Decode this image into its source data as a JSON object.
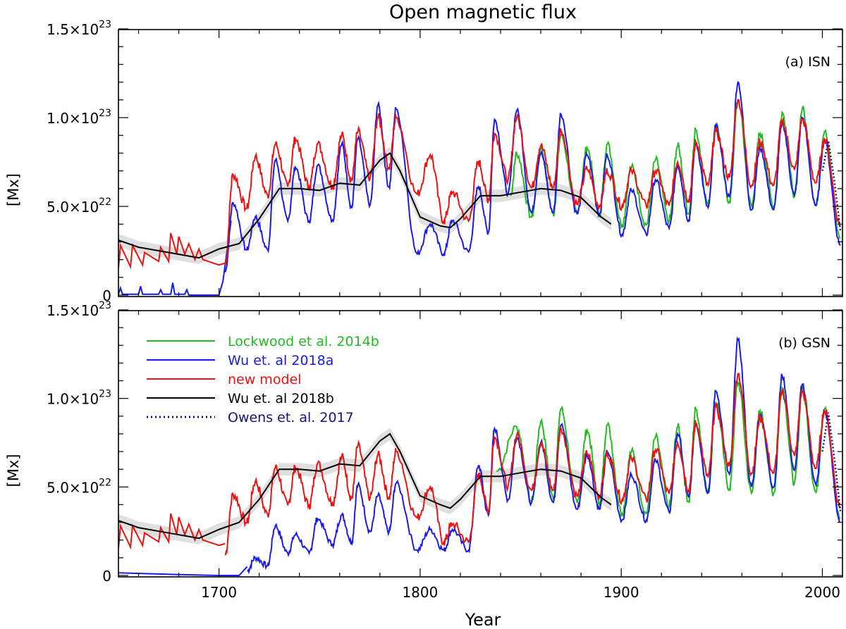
{
  "chart_data": {
    "type": "line",
    "title": "Open magnetic flux",
    "xlabel": "Year",
    "ylabel": "[Mx]",
    "xlim": [
      1650,
      2010
    ],
    "ylim": [
      0,
      1.5e+23
    ],
    "x_ticks": [
      {
        "value": 1700,
        "label": "1700"
      },
      {
        "value": 1800,
        "label": "1800"
      },
      {
        "value": 1900,
        "label": "1900"
      },
      {
        "value": 2000,
        "label": "2000"
      }
    ],
    "y_ticks": [
      {
        "value": 0,
        "mant": "0",
        "exp": ""
      },
      {
        "value": 5e+22,
        "mant": "5.0×10",
        "exp": "22"
      },
      {
        "value": 1e+23,
        "mant": "1.0×10",
        "exp": "23"
      },
      {
        "value": 1.5e+23,
        "mant": "1.5×10",
        "exp": "23"
      }
    ],
    "legend": [
      {
        "label": "Lockwood et al. 2014b",
        "color": "#22bb22",
        "style": "solid"
      },
      {
        "label": "Wu et. al 2018a",
        "color": "#1a1aee",
        "style": "solid"
      },
      {
        "label": "new model",
        "color": "#ee1111",
        "style": "solid"
      },
      {
        "label": "Wu et. al 2018b",
        "color": "#000000",
        "style": "solid"
      },
      {
        "label": "Owens et. al. 2017",
        "color": "#141480",
        "style": "dotted"
      }
    ],
    "panels": [
      {
        "id": "a",
        "label": "(a) ISN",
        "series": {
          "wu2018b": {
            "x": [
              1650,
              1660,
              1670,
              1680,
              1690,
              1700,
              1710,
              1720,
              1730,
              1740,
              1750,
              1760,
              1770,
              1780,
              1785,
              1790,
              1800,
              1810,
              1815,
              1820,
              1830,
              1840,
              1850,
              1860,
              1870,
              1880,
              1890,
              1895
            ],
            "y": [
              3.1e+22,
              2.7e+22,
              2.5e+22,
              2.3e+22,
              2.1e+22,
              2.6e+22,
              2.9e+22,
              4.3e+22,
              6e+22,
              6e+22,
              5.9e+22,
              6.3e+22,
              6.2e+22,
              7.6e+22,
              8e+22,
              7e+22,
              4.4e+22,
              3.9e+22,
              3.8e+22,
              4.3e+22,
              5.6e+22,
              5.6e+22,
              5.8e+22,
              6e+22,
              5.9e+22,
              5.5e+22,
              4.4e+22,
              4e+22
            ]
          },
          "wu2018a": {
            "peaks": [
              [
                1707,
                5.2e+22
              ],
              [
                1718,
                4.4e+22
              ],
              [
                1728,
                7.6e+22
              ],
              [
                1738,
                7.2e+22
              ],
              [
                1749,
                7.3e+22
              ],
              [
                1761,
                8.5e+22
              ],
              [
                1769,
                8.8e+22
              ],
              [
                1779,
                1.07e+23
              ],
              [
                1788,
                1.05e+23
              ],
              [
                1805,
                4e+22
              ],
              [
                1816,
                4.2e+22
              ],
              [
                1829,
                6.1e+22
              ],
              [
                1837,
                9.9e+22
              ],
              [
                1848,
                1.04e+23
              ],
              [
                1860,
                8e+22
              ],
              [
                1870,
                1.02e+23
              ],
              [
                1883,
                7.9e+22
              ],
              [
                1893,
                7.9e+22
              ],
              [
                1905,
                5.9e+22
              ],
              [
                1917,
                6.5e+22
              ],
              [
                1928,
                7.3e+22
              ],
              [
                1937,
                8.5e+22
              ],
              [
                1947,
                9.5e+22
              ],
              [
                1958,
                1.2e+23
              ],
              [
                1969,
                8.3e+22
              ],
              [
                1980,
                9.7e+22
              ],
              [
                1990,
                1e+23
              ],
              [
                2001,
                8.7e+22
              ]
            ],
            "trough_scale": 0.58,
            "final": 2.8e+22
          },
          "lockwood2014b": {
            "start": 1845,
            "peaks": [
              [
                1848,
                8e+22
              ],
              [
                1860,
                8.3e+22
              ],
              [
                1870,
                9e+22
              ],
              [
                1883,
                8.3e+22
              ],
              [
                1893,
                8.5e+22
              ],
              [
                1905,
                7.2e+22
              ],
              [
                1917,
                7.6e+22
              ],
              [
                1928,
                8.4e+22
              ],
              [
                1937,
                9.3e+22
              ],
              [
                1947,
                9.6e+22
              ],
              [
                1958,
                1.1e+23
              ],
              [
                1969,
                9.1e+22
              ],
              [
                1980,
                1.03e+23
              ],
              [
                1990,
                1.05e+23
              ],
              [
                2001,
                9.2e+22
              ]
            ],
            "trough_scale": 0.55,
            "final": 3.2e+22
          },
          "newmodel": {
            "peaks": [
              [
                1707,
                6.8e+22
              ],
              [
                1718,
                7.8e+22
              ],
              [
                1728,
                8.5e+22
              ],
              [
                1738,
                8.8e+22
              ],
              [
                1749,
                8.5e+22
              ],
              [
                1761,
                9e+22
              ],
              [
                1769,
                9.2e+22
              ],
              [
                1779,
                1e+23
              ],
              [
                1788,
                1e+23
              ],
              [
                1805,
                7.9e+22
              ],
              [
                1816,
                5.8e+22
              ],
              [
                1829,
                7.5e+22
              ],
              [
                1837,
                9.1e+22
              ],
              [
                1848,
                1e+23
              ],
              [
                1860,
                8.4e+22
              ],
              [
                1870,
                9.3e+22
              ],
              [
                1883,
                7.1e+22
              ],
              [
                1893,
                7e+22
              ],
              [
                1905,
                7e+22
              ],
              [
                1917,
                7e+22
              ],
              [
                1928,
                7.5e+22
              ],
              [
                1937,
                8.6e+22
              ],
              [
                1947,
                9.2e+22
              ],
              [
                1958,
                1.1e+23
              ],
              [
                1969,
                8.6e+22
              ],
              [
                1980,
                9.8e+22
              ],
              [
                1990,
                9.9e+22
              ],
              [
                2001,
                8.8e+22
              ]
            ],
            "trough_scale": 0.72,
            "final": 3.9e+22
          },
          "owens2017": {
            "x": [
              2000,
              2003,
              2006,
              2009
            ],
            "y": [
              7e+22,
              8.7e+22,
              6.4e+22,
              3.6e+22
            ]
          }
        }
      },
      {
        "id": "b",
        "label": "(b) GSN",
        "series": {
          "wu2018b": {
            "x": [
              1650,
              1660,
              1670,
              1680,
              1690,
              1700,
              1710,
              1720,
              1730,
              1740,
              1750,
              1760,
              1770,
              1780,
              1785,
              1790,
              1800,
              1810,
              1815,
              1820,
              1830,
              1840,
              1850,
              1860,
              1870,
              1880,
              1890,
              1895
            ],
            "y": [
              3.1e+22,
              2.7e+22,
              2.5e+22,
              2.3e+22,
              2.1e+22,
              2.6e+22,
              3e+22,
              4.3e+22,
              6e+22,
              6e+22,
              5.9e+22,
              6.3e+22,
              6.2e+22,
              7.6e+22,
              8e+22,
              7e+22,
              4.5e+22,
              4e+22,
              3.8e+22,
              4.3e+22,
              5.6e+22,
              5.6e+22,
              5.8e+22,
              6e+22,
              5.9e+22,
              5.5e+22,
              4.4e+22,
              4e+22
            ]
          },
          "wu2018a": {
            "peaks": [
              [
                1718,
                1e+22
              ],
              [
                1728,
                2.8e+22
              ],
              [
                1738,
                2.3e+22
              ],
              [
                1749,
                3.2e+22
              ],
              [
                1761,
                3.4e+22
              ],
              [
                1769,
                5.1e+22
              ],
              [
                1779,
                4.5e+22
              ],
              [
                1788,
                5.2e+22
              ],
              [
                1805,
                2.6e+22
              ],
              [
                1816,
                2.6e+22
              ],
              [
                1829,
                6.2e+22
              ],
              [
                1837,
                8.3e+22
              ],
              [
                1848,
                7.8e+22
              ],
              [
                1860,
                7.5e+22
              ],
              [
                1870,
                8.5e+22
              ],
              [
                1883,
                6.8e+22
              ],
              [
                1893,
                7e+22
              ],
              [
                1905,
                5.7e+22
              ],
              [
                1917,
                6.5e+22
              ],
              [
                1928,
                8e+22
              ],
              [
                1937,
                8.6e+22
              ],
              [
                1947,
                1.04e+23
              ],
              [
                1958,
                1.33e+23
              ],
              [
                1969,
                9.1e+22
              ],
              [
                1980,
                1.13e+23
              ],
              [
                1990,
                1.08e+23
              ],
              [
                2001,
                9.3e+22
              ]
            ],
            "trough_scale": 0.55,
            "final": 3e+22
          },
          "lockwood2014b": {
            "start": 1838,
            "peaks": [
              [
                1848,
                8.4e+22
              ],
              [
                1860,
                8.7e+22
              ],
              [
                1870,
                9.4e+22
              ],
              [
                1883,
                8.2e+22
              ],
              [
                1893,
                8.5e+22
              ],
              [
                1905,
                7e+22
              ],
              [
                1917,
                7.8e+22
              ],
              [
                1928,
                8.4e+22
              ],
              [
                1937,
                9.4e+22
              ],
              [
                1947,
                9.8e+22
              ],
              [
                1958,
                1.09e+23
              ],
              [
                1969,
                9.3e+22
              ],
              [
                1980,
                1.06e+23
              ],
              [
                1990,
                1.05e+23
              ],
              [
                2001,
                9.4e+22
              ]
            ],
            "trough_scale": 0.5,
            "final": 3.2e+22
          },
          "newmodel": {
            "peaks": [
              [
                1707,
                4.6e+22
              ],
              [
                1718,
                5.3e+22
              ],
              [
                1728,
                6.1e+22
              ],
              [
                1738,
                6.1e+22
              ],
              [
                1749,
                6.3e+22
              ],
              [
                1761,
                6.7e+22
              ],
              [
                1769,
                7.3e+22
              ],
              [
                1779,
                6.8e+22
              ],
              [
                1788,
                7e+22
              ],
              [
                1805,
                5e+22
              ],
              [
                1816,
                2.9e+22
              ],
              [
                1829,
                5.7e+22
              ],
              [
                1837,
                7.8e+22
              ],
              [
                1848,
                7.9e+22
              ],
              [
                1860,
                7.4e+22
              ],
              [
                1870,
                8.3e+22
              ],
              [
                1883,
                6.9e+22
              ],
              [
                1893,
                6.9e+22
              ],
              [
                1905,
                6.6e+22
              ],
              [
                1917,
                7.1e+22
              ],
              [
                1928,
                7.5e+22
              ],
              [
                1937,
                8.6e+22
              ],
              [
                1947,
                9.5e+22
              ],
              [
                1958,
                1.14e+23
              ],
              [
                1969,
                8.9e+22
              ],
              [
                1980,
                1.04e+23
              ],
              [
                1990,
                1.04e+23
              ],
              [
                2001,
                9.3e+22
              ]
            ],
            "trough_scale": 0.65,
            "final": 3.8e+22
          },
          "owens2017": {
            "x": [
              2000,
              2003,
              2006,
              2009
            ],
            "y": [
              7e+22,
              9.2e+22,
              6.6e+22,
              3.6e+22
            ]
          }
        }
      }
    ]
  }
}
